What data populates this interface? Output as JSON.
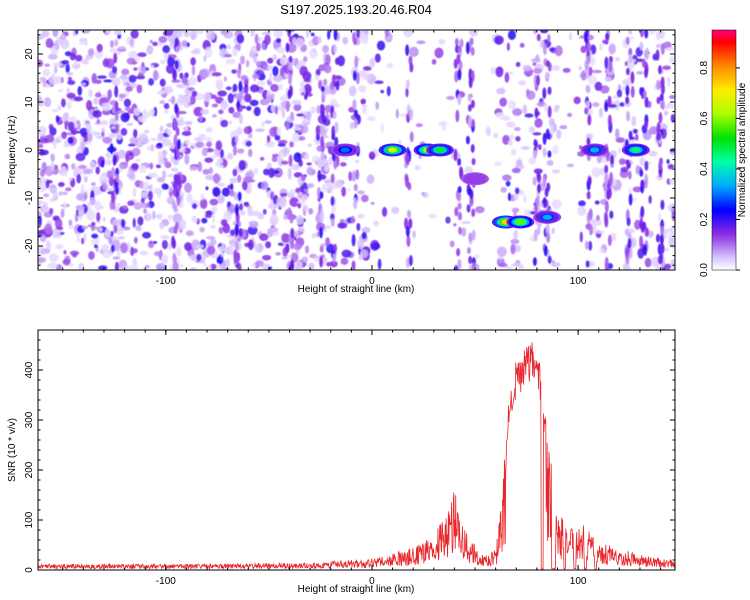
{
  "chart_data": [
    {
      "type": "heatmap",
      "title": "S197.2025.193.20.46.R04",
      "xlabel": "Height of straight line (km)",
      "ylabel": "Frequency (Hz)",
      "xlim": [
        -162,
        147
      ],
      "ylim": [
        -25,
        25
      ],
      "xticks": [
        -100,
        0,
        100
      ],
      "yticks": [
        -20,
        -10,
        0,
        10,
        20
      ],
      "colorbar": {
        "label": "Normalized spectral amplitude",
        "range": [
          0,
          0.95
        ],
        "ticks": [
          0.0,
          0.2,
          0.4,
          0.6,
          0.8
        ]
      },
      "features": [
        {
          "x": -13,
          "freq": 0,
          "amp": 0.35
        },
        {
          "x": 10,
          "freq": 0,
          "amp": 0.8
        },
        {
          "x": 27,
          "freq": 0,
          "amp": 0.75
        },
        {
          "x": 33,
          "freq": 0,
          "amp": 0.6
        },
        {
          "x": 50,
          "freq": -6,
          "amp": 0.25
        },
        {
          "x": 65,
          "freq": -15,
          "amp": 0.9
        },
        {
          "x": 72,
          "freq": -15,
          "amp": 0.7
        },
        {
          "x": 85,
          "freq": -14,
          "amp": 0.4
        },
        {
          "x": 108,
          "freq": 0,
          "amp": 0.4
        },
        {
          "x": 128,
          "freq": 0,
          "amp": 0.55
        }
      ]
    },
    {
      "type": "line",
      "xlabel": "Height of straight line (km)",
      "ylabel": "SNR (10 * v/v)",
      "xlim": [
        -162,
        147
      ],
      "ylim": [
        0,
        480
      ],
      "xticks": [
        -100,
        0,
        100
      ],
      "yticks": [
        0,
        100,
        200,
        300,
        400
      ],
      "color": "#e8262b",
      "envelope": [
        [
          -162,
          12
        ],
        [
          -100,
          12
        ],
        [
          -60,
          13
        ],
        [
          -30,
          15
        ],
        [
          -10,
          20
        ],
        [
          0,
          22
        ],
        [
          10,
          35
        ],
        [
          20,
          45
        ],
        [
          30,
          70
        ],
        [
          37,
          120
        ],
        [
          40,
          160
        ],
        [
          43,
          110
        ],
        [
          48,
          60
        ],
        [
          55,
          30
        ],
        [
          60,
          40
        ],
        [
          63,
          150
        ],
        [
          65,
          280
        ],
        [
          67,
          370
        ],
        [
          70,
          420
        ],
        [
          75,
          450
        ],
        [
          80,
          460
        ],
        [
          83,
          350
        ],
        [
          86,
          250
        ],
        [
          88,
          180
        ],
        [
          91,
          110
        ],
        [
          95,
          90
        ],
        [
          100,
          100
        ],
        [
          105,
          80
        ],
        [
          110,
          55
        ],
        [
          120,
          45
        ],
        [
          130,
          30
        ],
        [
          147,
          20
        ]
      ],
      "dropouts": [
        [
          82,
          83
        ],
        [
          87,
          89
        ],
        [
          93,
          94
        ],
        [
          98,
          99
        ],
        [
          103,
          104
        ],
        [
          108,
          109
        ]
      ]
    }
  ]
}
